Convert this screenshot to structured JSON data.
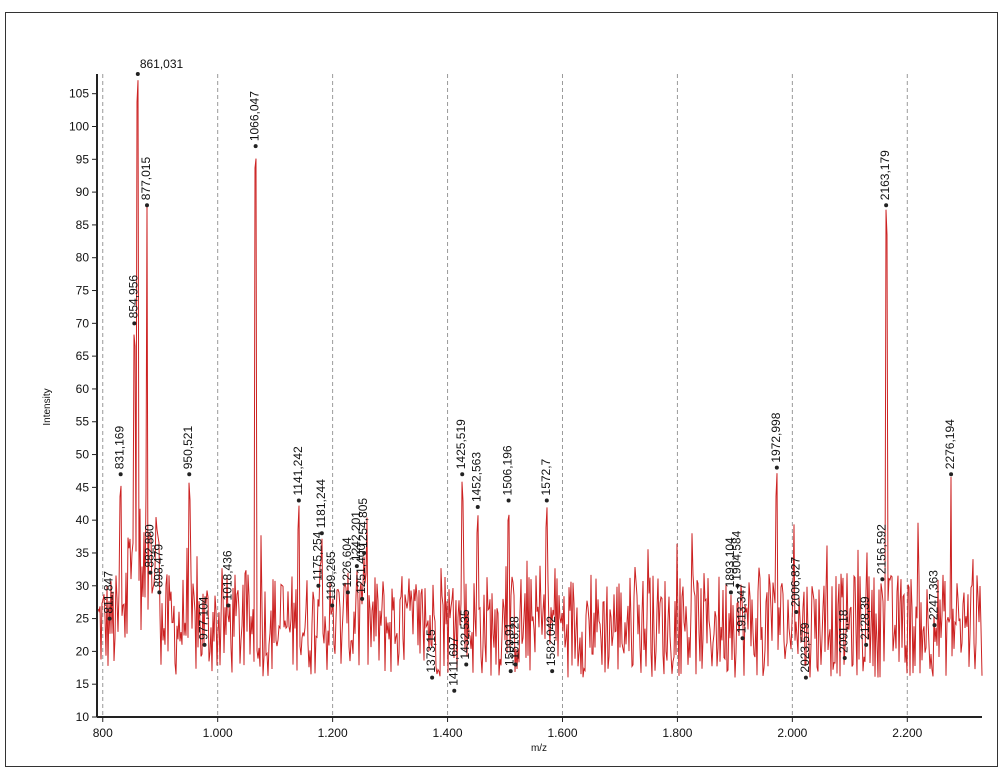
{
  "chart_data": {
    "type": "line",
    "title": "",
    "xlabel": "m/z",
    "ylabel": "Intensity",
    "xlim": [
      790,
      2330
    ],
    "ylim": [
      10,
      108
    ],
    "x_ticks": [
      800,
      1000,
      1200,
      1400,
      1600,
      1800,
      2000,
      2200
    ],
    "x_tick_labels": [
      "800",
      "1.000",
      "1.200",
      "1.400",
      "1.600",
      "1.800",
      "2.000",
      "2.200"
    ],
    "y_ticks": [
      10,
      15,
      20,
      25,
      30,
      35,
      40,
      45,
      50,
      55,
      60,
      65,
      70,
      75,
      80,
      85,
      90,
      95,
      100,
      105
    ],
    "y_tick_labels": [
      "10",
      "15",
      "20",
      "25",
      "30",
      "35",
      "40",
      "45",
      "50",
      "55",
      "60",
      "65",
      "70",
      "75",
      "80",
      "85",
      "90",
      "95",
      "100",
      "105"
    ],
    "grid": "vertical dashed",
    "line_color": "#cc2222",
    "seed": 12345,
    "series": [
      {
        "peaks": [
          {
            "x": 811.847,
            "y": 25,
            "label": "811,847"
          },
          {
            "x": 831.169,
            "y": 47,
            "label": "831,169"
          },
          {
            "x": 854.956,
            "y": 70,
            "label": "854,956"
          },
          {
            "x": 861.031,
            "y": 108,
            "label": "861,031"
          },
          {
            "x": 877.015,
            "y": 88,
            "label": "877,015"
          },
          {
            "x": 882.88,
            "y": 32,
            "label": "882,880"
          },
          {
            "x": 898.479,
            "y": 29,
            "label": "898,479"
          },
          {
            "x": 950.521,
            "y": 47,
            "label": "950,521"
          },
          {
            "x": 977.104,
            "y": 21,
            "label": "977,104"
          },
          {
            "x": 1018.436,
            "y": 27,
            "label": "1018,436"
          },
          {
            "x": 1066.047,
            "y": 97,
            "label": "1066,047"
          },
          {
            "x": 1141.242,
            "y": 43,
            "label": "1141,242"
          },
          {
            "x": 1175.254,
            "y": 30,
            "label": "1175,254"
          },
          {
            "x": 1181.244,
            "y": 38,
            "label": "1181,244"
          },
          {
            "x": 1199.265,
            "y": 27,
            "label": "1199,265"
          },
          {
            "x": 1226.604,
            "y": 29,
            "label": "1226,604"
          },
          {
            "x": 1242.201,
            "y": 33,
            "label": "1242,201"
          },
          {
            "x": 1251.4,
            "y": 28,
            "label": "1251,400"
          },
          {
            "x": 1254.805,
            "y": 35,
            "label": "1254,805"
          },
          {
            "x": 1373.15,
            "y": 16,
            "label": "1373,15"
          },
          {
            "x": 1411.697,
            "y": 14,
            "label": "1411,697"
          },
          {
            "x": 1425.519,
            "y": 47,
            "label": "1425,519"
          },
          {
            "x": 1432.535,
            "y": 18,
            "label": "1432,535"
          },
          {
            "x": 1452.563,
            "y": 42,
            "label": "1452,563"
          },
          {
            "x": 1506.196,
            "y": 43,
            "label": "1506,196"
          },
          {
            "x": 1509.91,
            "y": 17,
            "label": "1509,91"
          },
          {
            "x": 1518.28,
            "y": 18,
            "label": "1518,28"
          },
          {
            "x": 1572.7,
            "y": 43,
            "label": "1572,7"
          },
          {
            "x": 1582.042,
            "y": 17,
            "label": "1582,042"
          },
          {
            "x": 1893.104,
            "y": 29,
            "label": "1893,104"
          },
          {
            "x": 1904.584,
            "y": 30,
            "label": "1904,584"
          },
          {
            "x": 1913.347,
            "y": 22,
            "label": "1913,347"
          },
          {
            "x": 1972.998,
            "y": 48,
            "label": "1972,998"
          },
          {
            "x": 2006.827,
            "y": 26,
            "label": "2006,827"
          },
          {
            "x": 2023.579,
            "y": 16,
            "label": "2023,579"
          },
          {
            "x": 2091.18,
            "y": 19,
            "label": "2091,18"
          },
          {
            "x": 2128.39,
            "y": 21,
            "label": "2128,39"
          },
          {
            "x": 2156.592,
            "y": 31,
            "label": "2156,592"
          },
          {
            "x": 2163.179,
            "y": 88,
            "label": "2163,179"
          },
          {
            "x": 2247.363,
            "y": 24,
            "label": "2247,363"
          },
          {
            "x": 2276.194,
            "y": 47,
            "label": "2276,194"
          }
        ]
      }
    ]
  }
}
